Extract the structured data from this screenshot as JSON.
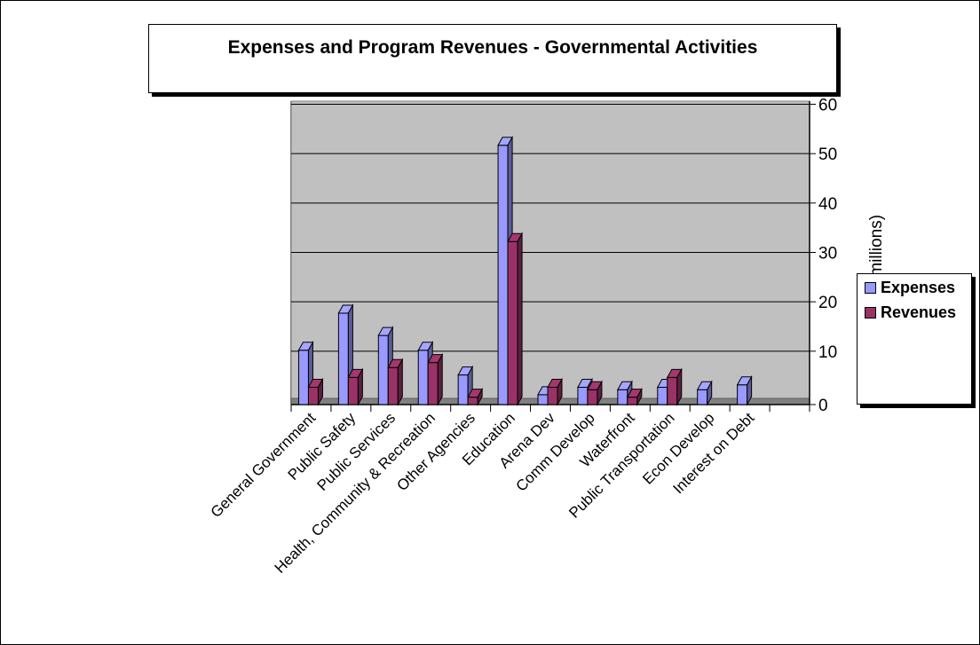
{
  "chart_data": {
    "type": "bar",
    "title": "Expenses and Program Revenues - Governmental Activities",
    "ylabel": "(in millions)",
    "ylim": [
      0,
      60
    ],
    "yticks": [
      "0",
      "10",
      "20",
      "30",
      "40",
      "50",
      "60"
    ],
    "categories": [
      "General Government",
      "Public Safety",
      "Public Services",
      "Health, Community & Recreation",
      "Other Agencies",
      "Education",
      "Arena Dev",
      "Comm Develop",
      "Waterfront",
      "Public Transportation",
      "Econ Develop",
      "Interest on Debt"
    ],
    "series": [
      {
        "name": "Expenses",
        "color": "#9999ff",
        "values": [
          11,
          18.5,
          14,
          11,
          6,
          52.5,
          2,
          3.5,
          3,
          3.5,
          3,
          4
        ]
      },
      {
        "name": "Revenues",
        "color": "#993366",
        "values": [
          3.5,
          5.5,
          7.5,
          8.5,
          1.5,
          33,
          3.5,
          3,
          1.5,
          5.5,
          0,
          0
        ]
      }
    ],
    "grid": true,
    "legend": "right"
  }
}
